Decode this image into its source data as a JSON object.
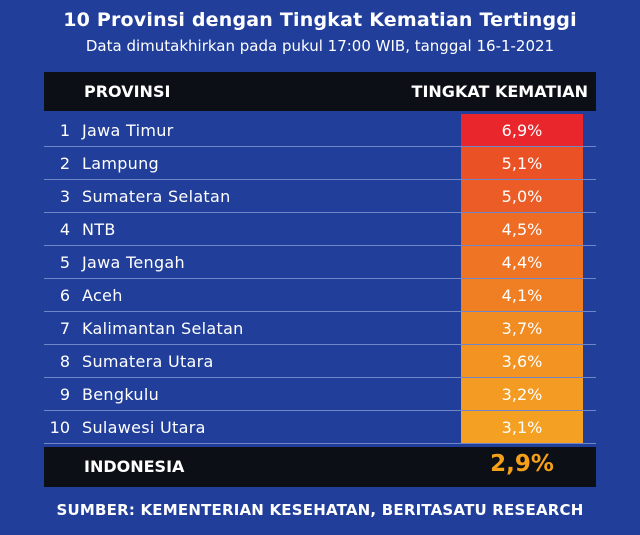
{
  "title": "10 Provinsi dengan Tingkat Kematian Tertinggi",
  "subtitle": "Data dimutakhirkan pada pukul 17:00 WIB, tanggal 16-1-2021",
  "header": {
    "provinsi": "PROVINSI",
    "tingkat": "TINGKAT KEMATIAN"
  },
  "chart_data": {
    "type": "table",
    "columns": [
      "PROVINSI",
      "TINGKAT KEMATIAN"
    ],
    "rows": [
      {
        "rank": "1",
        "province": "Jawa Timur",
        "value": 6.9,
        "label": "6,9%",
        "color": "#e8262b"
      },
      {
        "rank": "2",
        "province": "Lampung",
        "value": 5.1,
        "label": "5,1%",
        "color": "#ea5226"
      },
      {
        "rank": "3",
        "province": "Sumatera Selatan",
        "value": 5.0,
        "label": "5,0%",
        "color": "#eb5c26"
      },
      {
        "rank": "4",
        "province": "NTB",
        "value": 4.5,
        "label": "4,5%",
        "color": "#ee6c24"
      },
      {
        "rank": "5",
        "province": "Jawa Tengah",
        "value": 4.4,
        "label": "4,4%",
        "color": "#ef7423"
      },
      {
        "rank": "6",
        "province": "Aceh",
        "value": 4.1,
        "label": "4,1%",
        "color": "#f07e22"
      },
      {
        "rank": "7",
        "province": "Kalimantan Selatan",
        "value": 3.7,
        "label": "3,7%",
        "color": "#f18c22"
      },
      {
        "rank": "8",
        "province": "Sumatera Utara",
        "value": 3.6,
        "label": "3,6%",
        "color": "#f29322"
      },
      {
        "rank": "9",
        "province": "Bengkulu",
        "value": 3.2,
        "label": "3,2%",
        "color": "#f39b23"
      },
      {
        "rank": "10",
        "province": "Sulawesi Utara",
        "value": 3.1,
        "label": "3,1%",
        "color": "#f4a123"
      }
    ],
    "total": {
      "province": "INDONESIA",
      "value": 2.9,
      "label": "2,9%"
    }
  },
  "source": "SUMBER: KEMENTERIAN KESEHATAN, BERITASATU RESEARCH"
}
